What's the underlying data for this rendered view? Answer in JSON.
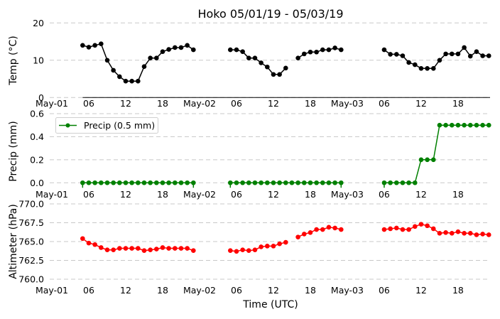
{
  "title": "Hoko 05/01/19 - 05/03/19",
  "colors": {
    "temp": "#000000",
    "precip": "#008000",
    "altimeter": "#ff0000",
    "grid": "#c8c8c8"
  },
  "chart_data": [
    {
      "type": "line",
      "ylabel": "Temp (°C)",
      "ylim": [
        0,
        20
      ],
      "yticks": [
        "0",
        "10",
        "20"
      ],
      "xlim": [
        "2019-05-01 00:00",
        "2019-05-03 23:12"
      ],
      "xticks": [
        {
          "t": "2019-05-01 00:00",
          "label": "May-01"
        },
        {
          "t": "2019-05-01 06:00",
          "label": "06"
        },
        {
          "t": "2019-05-01 12:00",
          "label": "12"
        },
        {
          "t": "2019-05-01 18:00",
          "label": "18"
        },
        {
          "t": "2019-05-02 00:00",
          "label": "May-02"
        },
        {
          "t": "2019-05-02 06:00",
          "label": "06"
        },
        {
          "t": "2019-05-02 12:00",
          "label": "12"
        },
        {
          "t": "2019-05-02 18:00",
          "label": "18"
        },
        {
          "t": "2019-05-03 00:00",
          "label": "May-03"
        },
        {
          "t": "2019-05-03 06:00",
          "label": "06"
        },
        {
          "t": "2019-05-03 12:00",
          "label": "12"
        },
        {
          "t": "2019-05-03 18:00",
          "label": "18"
        }
      ],
      "grid": "y dashed",
      "series": [
        {
          "color": "#000000",
          "values": [
            14.0,
            13.5,
            14.0,
            14.4,
            10.0,
            7.3,
            5.6,
            4.4,
            4.4,
            4.4,
            8.3,
            10.6,
            10.6,
            12.3,
            12.9,
            13.4,
            13.4,
            14.0,
            12.8,
            null,
            null,
            null,
            null,
            null,
            12.8,
            12.8,
            12.3,
            10.6,
            10.6,
            9.3,
            8.2,
            6.2,
            6.2,
            7.9,
            null,
            10.6,
            11.7,
            12.2,
            12.2,
            12.8,
            12.8,
            13.3,
            12.8,
            null,
            null,
            null,
            null,
            null,
            null,
            12.8,
            11.6,
            11.6,
            11.2,
            9.4,
            8.8,
            7.8,
            7.8,
            7.8,
            10.0,
            11.7,
            11.7,
            11.7,
            13.4,
            11.1,
            12.3,
            11.2,
            11.2
          ]
        }
      ]
    },
    {
      "type": "line",
      "ylabel": "Precip (mm)",
      "ylim": [
        -0.07,
        0.6
      ],
      "yticks": [
        "0.0",
        "0.2",
        "0.4",
        "0.6"
      ],
      "legend": {
        "position": "upper-left",
        "entries": [
          "Precip (0.5 mm)"
        ]
      },
      "grid": "y dashed",
      "series": [
        {
          "name": "Precip (0.5 mm)",
          "color": "#008000",
          "values": [
            0,
            0,
            0,
            0,
            0,
            0,
            0,
            0,
            0,
            0,
            0,
            0,
            0,
            0,
            0,
            0,
            0,
            0,
            0,
            null,
            null,
            null,
            null,
            null,
            0,
            0,
            0,
            0,
            0,
            0,
            0,
            0,
            0,
            0,
            0,
            0,
            0,
            0,
            0,
            0,
            0,
            0,
            0,
            null,
            null,
            null,
            null,
            null,
            null,
            0,
            0,
            0,
            0,
            0,
            0,
            0.2,
            0.2,
            0.2,
            0.5,
            0.5,
            0.5,
            0.5,
            0.5,
            0.5,
            0.5,
            0.5,
            0.5
          ]
        }
      ]
    },
    {
      "type": "line",
      "ylabel": "Altimeter (hPa)",
      "xlabel": "Time (UTC)",
      "ylim": [
        760,
        770
      ],
      "yticks": [
        "760.0",
        "762.5",
        "765.0",
        "767.5",
        "770.0"
      ],
      "grid": "y dashed",
      "series": [
        {
          "color": "#ff0000",
          "values": [
            765.4,
            764.8,
            764.6,
            764.2,
            763.9,
            763.9,
            764.1,
            764.1,
            764.1,
            764.1,
            763.8,
            763.9,
            764.0,
            764.2,
            764.1,
            764.1,
            764.1,
            764.1,
            763.8,
            null,
            null,
            null,
            null,
            null,
            763.8,
            763.7,
            763.9,
            763.8,
            763.9,
            764.3,
            764.4,
            764.4,
            764.7,
            764.9,
            null,
            765.6,
            766.0,
            766.2,
            766.6,
            766.6,
            766.9,
            766.8,
            766.6,
            null,
            null,
            null,
            null,
            null,
            null,
            766.6,
            766.7,
            766.8,
            766.6,
            766.6,
            767.0,
            767.3,
            767.1,
            766.7,
            766.1,
            766.2,
            766.1,
            766.3,
            766.1,
            766.1,
            765.9,
            766.0,
            765.9
          ]
        }
      ]
    }
  ],
  "x_times": [
    "2019-05-01 05:00",
    "2019-05-01 06:00",
    "2019-05-01 07:00",
    "2019-05-01 08:00",
    "2019-05-01 09:00",
    "2019-05-01 10:00",
    "2019-05-01 11:00",
    "2019-05-01 12:00",
    "2019-05-01 13:00",
    "2019-05-01 14:00",
    "2019-05-01 15:00",
    "2019-05-01 16:00",
    "2019-05-01 17:00",
    "2019-05-01 18:00",
    "2019-05-01 19:00",
    "2019-05-01 20:00",
    "2019-05-01 21:00",
    "2019-05-01 22:00",
    "2019-05-01 23:00",
    "2019-05-02 00:00",
    "2019-05-02 01:00",
    "2019-05-02 02:00",
    "2019-05-02 03:00",
    "2019-05-02 04:00",
    "2019-05-02 05:00",
    "2019-05-02 06:00",
    "2019-05-02 07:00",
    "2019-05-02 08:00",
    "2019-05-02 09:00",
    "2019-05-02 10:00",
    "2019-05-02 11:00",
    "2019-05-02 12:00",
    "2019-05-02 13:00",
    "2019-05-02 14:00",
    "2019-05-02 15:00",
    "2019-05-02 16:00",
    "2019-05-02 17:00",
    "2019-05-02 18:00",
    "2019-05-02 19:00",
    "2019-05-02 20:00",
    "2019-05-02 21:00",
    "2019-05-02 22:00",
    "2019-05-02 23:00",
    "2019-05-03 00:00",
    "2019-05-03 01:00",
    "2019-05-03 02:00",
    "2019-05-03 03:00",
    "2019-05-03 04:00",
    "2019-05-03 05:00",
    "2019-05-03 06:00",
    "2019-05-03 07:00",
    "2019-05-03 08:00",
    "2019-05-03 09:00",
    "2019-05-03 10:00",
    "2019-05-03 11:00",
    "2019-05-03 12:00",
    "2019-05-03 13:00",
    "2019-05-03 14:00",
    "2019-05-03 15:00",
    "2019-05-03 16:00",
    "2019-05-03 17:00",
    "2019-05-03 18:00",
    "2019-05-03 19:00",
    "2019-05-03 20:00",
    "2019-05-03 21:00",
    "2019-05-03 22:00",
    "2019-05-03 23:00"
  ]
}
